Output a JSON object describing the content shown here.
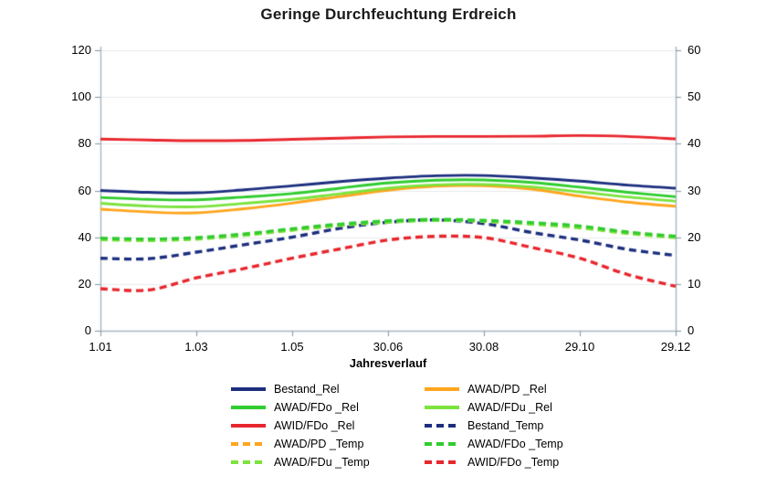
{
  "figure": {
    "title": "Geringe Durchfeuchtung Erdreich"
  },
  "chart_data": {
    "type": "line",
    "title": "Geringe Durchfeuchtung Erdreich",
    "xlabel": "Jahresverlauf",
    "grid": "horizontal-faint",
    "legend_position": "bottom",
    "x_axis": {
      "tick_labels": [
        "1.01",
        "1.03",
        "1.05",
        "30.06",
        "30.08",
        "29.10",
        "29.12"
      ]
    },
    "left_axis": {
      "min": 0,
      "max": 120,
      "ticks": [
        0,
        20,
        40,
        60,
        80,
        100,
        120
      ]
    },
    "right_axis": {
      "min": 0,
      "max": 60,
      "ticks": [
        0,
        10,
        20,
        30,
        40,
        50,
        60
      ]
    },
    "x": [
      0,
      0.5,
      1,
      1.5,
      2,
      2.5,
      3,
      3.5,
      4,
      4.5,
      5,
      5.5,
      6
    ],
    "series": [
      {
        "name": "AWAD/PD _Temp",
        "axis": "right",
        "style": "dashed",
        "color": "#ffa51e",
        "values": [
          19.6,
          19.4,
          19.8,
          20.6,
          21.6,
          22.6,
          23.3,
          23.7,
          23.4,
          23.0,
          22.1,
          21.0,
          20.0
        ]
      },
      {
        "name": "Bestand_Temp",
        "axis": "right",
        "style": "dashed",
        "color": "#1c2e7e",
        "values": [
          15.5,
          15.4,
          16.8,
          18.4,
          20.0,
          21.9,
          23.2,
          23.7,
          22.9,
          21.0,
          19.4,
          17.4,
          16.1
        ]
      },
      {
        "name": "AWAD/FDu _Temp",
        "axis": "right",
        "style": "dashed",
        "color": "#7be33e",
        "values": [
          19.5,
          19.3,
          19.6,
          20.4,
          21.5,
          22.5,
          23.2,
          23.6,
          23.4,
          22.8,
          22.0,
          20.8,
          19.9
        ]
      },
      {
        "name": "AWAD/FDo _Temp",
        "axis": "right",
        "style": "dashed",
        "color": "#2fcc30",
        "values": [
          19.8,
          19.6,
          19.9,
          20.7,
          21.8,
          22.8,
          23.5,
          23.8,
          23.6,
          23.1,
          22.4,
          21.1,
          20.2
        ]
      },
      {
        "name": "AWID/FDo _Temp",
        "axis": "right",
        "style": "dashed",
        "color": "#e8262d",
        "values": [
          9.0,
          8.7,
          11.3,
          13.3,
          15.5,
          17.5,
          19.4,
          20.2,
          19.9,
          17.8,
          15.5,
          12.0,
          9.5
        ]
      },
      {
        "name": "AWAD/PD _Rel",
        "axis": "left",
        "style": "solid",
        "color": "#ffa51e",
        "values": [
          52.0,
          50.8,
          50.4,
          52.2,
          54.6,
          57.4,
          60.1,
          61.8,
          62.0,
          60.6,
          57.6,
          55.0,
          53.2
        ]
      },
      {
        "name": "AWAD/FDu _Rel",
        "axis": "left",
        "style": "solid",
        "color": "#7be33e",
        "values": [
          54.5,
          53.3,
          53.0,
          54.5,
          56.2,
          58.6,
          61.0,
          62.4,
          62.6,
          61.5,
          59.4,
          57.2,
          55.4
        ]
      },
      {
        "name": "AWAD/FDo _Rel",
        "axis": "left",
        "style": "solid",
        "color": "#2fcc30",
        "values": [
          57.0,
          56.2,
          56.0,
          57.2,
          58.7,
          61.0,
          63.2,
          64.4,
          64.5,
          63.4,
          61.4,
          59.2,
          57.3
        ]
      },
      {
        "name": "Bestand_Rel",
        "axis": "left",
        "style": "solid",
        "color": "#1c2e7e",
        "values": [
          60.0,
          59.2,
          59.0,
          60.3,
          62.0,
          63.8,
          65.3,
          66.3,
          66.4,
          65.4,
          64.0,
          62.3,
          61.0
        ]
      },
      {
        "name": "AWID/FDo _Rel",
        "axis": "left",
        "style": "solid",
        "color": "#e8262d",
        "values": [
          82.0,
          81.6,
          81.3,
          81.4,
          81.9,
          82.4,
          82.9,
          83.1,
          83.1,
          83.2,
          83.5,
          83.1,
          82.1
        ]
      }
    ],
    "legend_items": [
      {
        "label": "Bestand_Rel",
        "color": "#1c2e7e",
        "style": "solid"
      },
      {
        "label": "AWAD/PD _Rel",
        "color": "#ffa51e",
        "style": "solid"
      },
      {
        "label": "AWAD/FDo _Rel",
        "color": "#2fcc30",
        "style": "solid"
      },
      {
        "label": "AWAD/FDu _Rel",
        "color": "#7be33e",
        "style": "solid"
      },
      {
        "label": "AWID/FDo _Rel",
        "color": "#e8262d",
        "style": "solid"
      },
      {
        "label": "Bestand_Temp",
        "color": "#1c2e7e",
        "style": "dashed"
      },
      {
        "label": "AWAD/PD _Temp",
        "color": "#ffa51e",
        "style": "dashed"
      },
      {
        "label": "AWAD/FDo _Temp",
        "color": "#2fcc30",
        "style": "dashed"
      },
      {
        "label": "AWAD/FDu _Temp",
        "color": "#7be33e",
        "style": "dashed"
      },
      {
        "label": "AWID/FDo _Temp",
        "color": "#e8262d",
        "style": "dashed"
      }
    ],
    "style_colors": {
      "grid_line": "#e7eaec",
      "axis_line": "#a8b6c2",
      "tick_mark": "#8fa0ad"
    }
  }
}
